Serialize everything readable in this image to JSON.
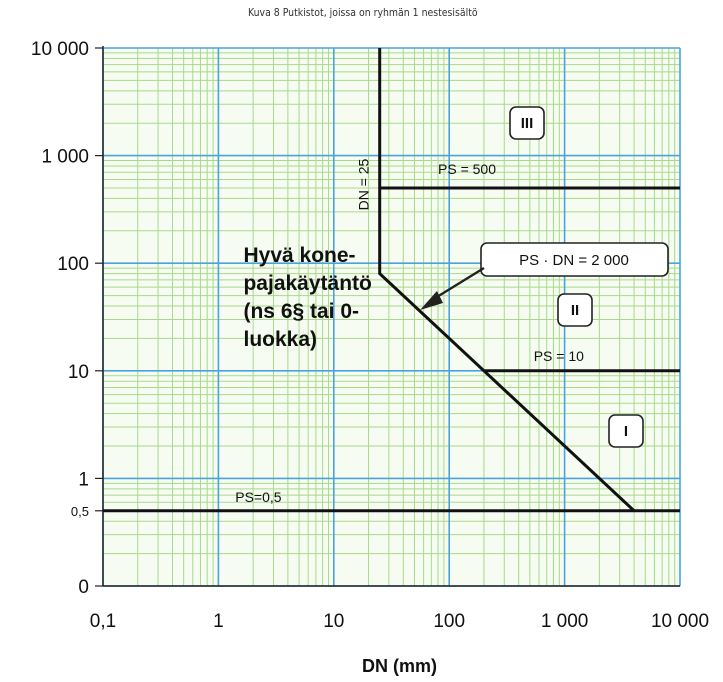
{
  "title": "Kuva 8  Putkistot, joissa on ryhmän 1 nestesisältö",
  "chart_data": {
    "type": "line",
    "title": "Kuva 8  Putkistot, joissa on ryhmän 1 nestesisältö",
    "xlabel": "DN (mm)",
    "ylabel": "",
    "x_scale": "log",
    "y_scale": "log",
    "xlim": [
      0.1,
      10000
    ],
    "ylim": [
      0.1,
      10000
    ],
    "grid": true,
    "x_ticks": [
      {
        "value": 0.1,
        "label": "0,1"
      },
      {
        "value": 1,
        "label": "1"
      },
      {
        "value": 10,
        "label": "10"
      },
      {
        "value": 100,
        "label": "100"
      },
      {
        "value": 1000,
        "label": "1 000"
      },
      {
        "value": 10000,
        "label": "10 000"
      }
    ],
    "y_ticks": [
      {
        "value": 0.1,
        "label": "0",
        "size": "large"
      },
      {
        "value": 0.5,
        "label": "0,5",
        "size": "small"
      },
      {
        "value": 1,
        "label": "1",
        "size": "large"
      },
      {
        "value": 10,
        "label": "10",
        "size": "large"
      },
      {
        "value": 100,
        "label": "100",
        "size": "large"
      },
      {
        "value": 1000,
        "label": "1 000",
        "size": "large"
      },
      {
        "value": 10000,
        "label": "10 000",
        "size": "large"
      }
    ],
    "series": [
      {
        "values": [
          [
            0.1,
            0.5
          ],
          [
            10000,
            0.5
          ]
        ]
      },
      {
        "values": [
          [
            25,
            10000
          ],
          [
            25,
            80
          ],
          [
            4000,
            0.5
          ]
        ]
      },
      {
        "values": [
          [
            25,
            500
          ],
          [
            10000,
            500
          ]
        ]
      },
      {
        "values": [
          [
            200,
            10
          ],
          [
            10000,
            10
          ]
        ]
      }
    ],
    "annotations": {
      "ps_05": "PS=0,5",
      "ps_10": "PS = 10",
      "ps_500": "PS = 500",
      "dn_25": "DN = 25",
      "ps_dn": "PS · DN = 2 000",
      "region_label_lines": [
        "Hyvä kone-",
        "pajakäytäntö",
        "(ns 6§ tai 0-",
        "luokka)"
      ],
      "category_I": "I",
      "category_II": "II",
      "category_III": "III"
    },
    "colors": {
      "major_grid": "#4aa3df",
      "minor_grid": "#a8d98a",
      "lines": "#111111",
      "plot_bg": "#f7fcf2"
    }
  }
}
